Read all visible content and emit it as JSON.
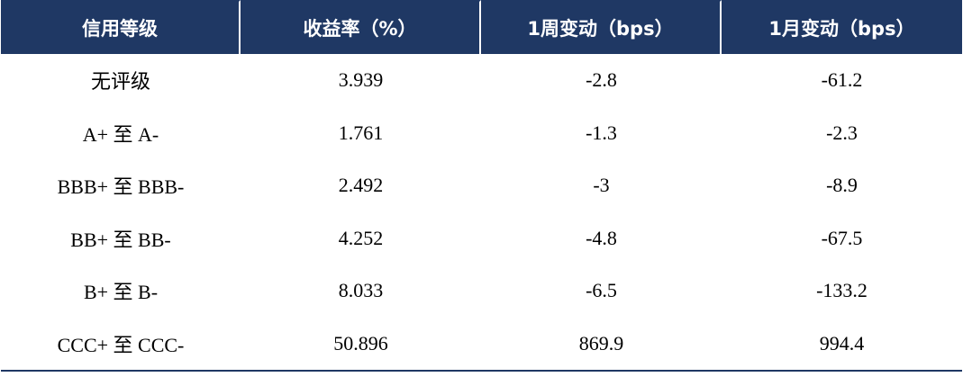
{
  "table": {
    "headers": [
      "信用等级",
      "收益率（%）",
      "1周变动（bps）",
      "1月变动（bps）"
    ],
    "rows": [
      [
        "无评级",
        "3.939",
        "-2.8",
        "-61.2"
      ],
      [
        "A+ 至 A-",
        "1.761",
        "-1.3",
        "-2.3"
      ],
      [
        "BBB+ 至 BBB-",
        "2.492",
        "-3",
        "-8.9"
      ],
      [
        "BB+ 至 BB-",
        "4.252",
        "-4.8",
        "-67.5"
      ],
      [
        "B+ 至 B-",
        "8.033",
        "-6.5",
        "-133.2"
      ],
      [
        "CCC+ 至 CCC-",
        "50.896",
        "869.9",
        "994.4"
      ]
    ]
  },
  "colors": {
    "header_bg": "#1f3864",
    "header_text": "#ffffff",
    "body_text": "#000000",
    "bottom_rule": "#1f3864"
  }
}
